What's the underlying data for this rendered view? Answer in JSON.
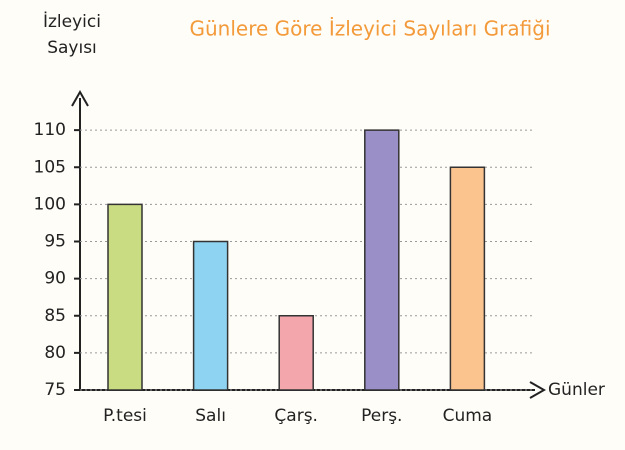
{
  "chart_data": {
    "type": "bar",
    "title": "Günlere Göre İzleyici Sayıları Grafiği",
    "y_label": [
      "İzleyici",
      "Sayısı"
    ],
    "x_label": "Günler",
    "categories": [
      "P.tesi",
      "Salı",
      "Çarş.",
      "Perş.",
      "Cuma"
    ],
    "values": [
      100,
      95,
      85,
      110,
      105
    ],
    "colors": [
      "#c9dc82",
      "#8fd3f2",
      "#f3a7ac",
      "#9a8fc6",
      "#fbc48f"
    ],
    "title_color": "#f39a3a",
    "ylim": [
      75,
      115
    ],
    "yticks": [
      75,
      80,
      85,
      90,
      95,
      100,
      105,
      110
    ],
    "grid": true
  }
}
